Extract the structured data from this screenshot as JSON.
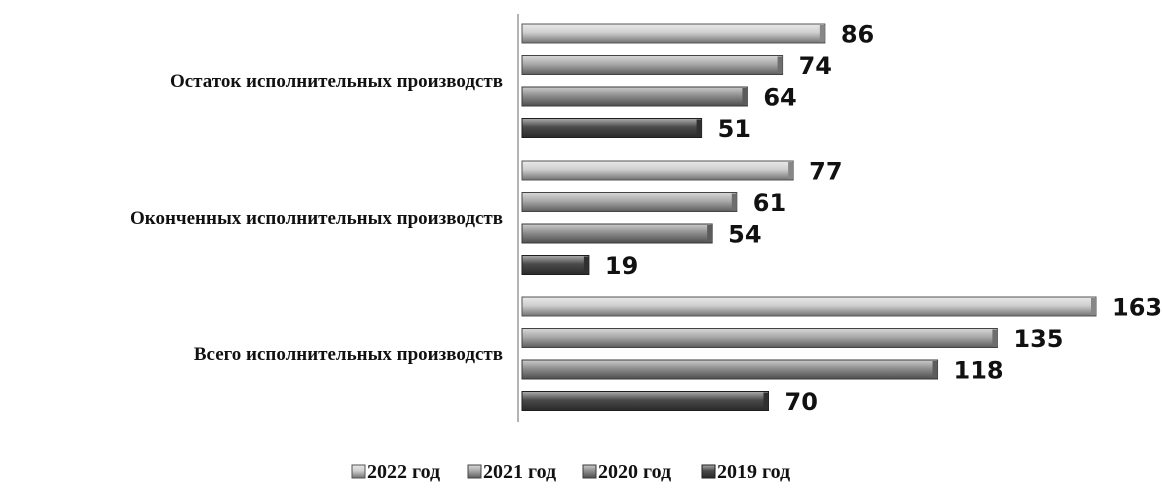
{
  "chart_data": {
    "type": "bar",
    "orientation": "horizontal",
    "categories": [
      "Остаток исполнительных производств",
      "Оконченных исполнительных производств",
      "Всего исполнительных производств"
    ],
    "series": [
      {
        "name": "2022 год",
        "values": [
          86,
          77,
          163
        ],
        "color": "#cfcfcf"
      },
      {
        "name": "2021 год",
        "values": [
          74,
          61,
          135
        ],
        "color": "#a9a9a9"
      },
      {
        "name": "2020 год",
        "values": [
          64,
          54,
          118
        ],
        "color": "#8e8e8e"
      },
      {
        "name": "2019 год",
        "values": [
          51,
          19,
          70
        ],
        "color": "#4a4a4a"
      }
    ],
    "xlim": [
      0,
      163
    ],
    "grid": false,
    "legend_position": "bottom"
  }
}
